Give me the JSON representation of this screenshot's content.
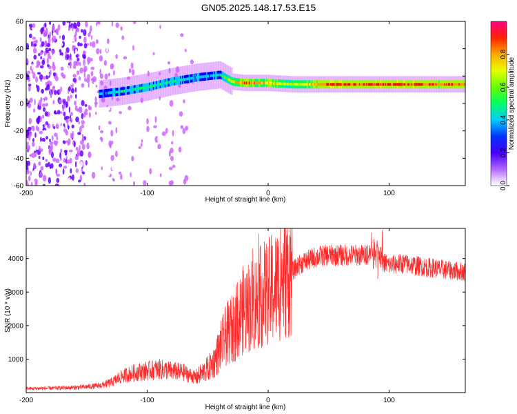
{
  "figure": {
    "title": "GN05.2025.148.17.53.E15"
  },
  "chart_data": [
    {
      "type": "heatmap",
      "name": "spectrogram",
      "xlabel": "Height of straight line (km)",
      "ylabel": "Frequency (Hz)",
      "xlim": [
        -200,
        163
      ],
      "ylim": [
        -60,
        60
      ],
      "xticks": [
        -200,
        -100,
        0,
        100
      ],
      "yticks": [
        -60,
        -40,
        -20,
        0,
        20,
        40,
        60
      ],
      "ytick_labels": [
        "-60",
        "-40",
        "-20",
        "0",
        "20",
        "40",
        "60"
      ],
      "grid": false,
      "colorbar": {
        "label": "Normalized spectral amplitude",
        "range": [
          0,
          1
        ],
        "ticks": [
          0.0,
          0.2,
          0.4,
          0.6,
          0.8
        ],
        "tick_labels": [
          "0.0",
          "0.2",
          "0.4",
          "0.6",
          "0.8"
        ],
        "colormap": [
          "#ffffff",
          "#cc66ff",
          "#6600ff",
          "#0000ff",
          "#00ccff",
          "#00ff66",
          "#99ff00",
          "#ffff00",
          "#ff9900",
          "#ff0000",
          "#ff0099"
        ]
      },
      "ridge": {
        "x": [
          -140,
          -120,
          -100,
          -80,
          -60,
          -40,
          -30,
          -20,
          0,
          20,
          50,
          80,
          100,
          120,
          140,
          163
        ],
        "freq": [
          7,
          9,
          12,
          16,
          19,
          21,
          16,
          15,
          15,
          14,
          14,
          14,
          14,
          14,
          14,
          14
        ],
        "peak_amplitude": [
          0.45,
          0.5,
          0.55,
          0.55,
          0.45,
          0.5,
          0.75,
          0.9,
          0.8,
          0.7,
          0.95,
          0.9,
          0.95,
          0.95,
          0.9,
          0.9
        ]
      },
      "noise_region_x": [
        -200,
        -60
      ]
    },
    {
      "type": "line",
      "name": "snr",
      "xlabel": "Height of straight line (km)",
      "ylabel": "SNR (10 * v/v)",
      "xlim": [
        -200,
        163
      ],
      "ylim": [
        0,
        4900
      ],
      "xticks": [
        -200,
        -100,
        0,
        100
      ],
      "yticks": [
        1000,
        2000,
        3000,
        4000
      ],
      "grid": false,
      "color": "#ff2a2a",
      "series": [
        {
          "x": [
            -200,
            -180,
            -160,
            -140,
            -130,
            -120,
            -110,
            -100,
            -90,
            -80,
            -70,
            -60,
            -50,
            -45,
            -40,
            -35,
            -30,
            -25,
            -20,
            -15,
            -10,
            -5,
            0,
            5,
            10,
            15,
            20,
            25,
            30,
            40,
            50,
            60,
            70,
            80,
            85,
            90,
            95,
            100,
            110,
            120,
            130,
            140,
            150,
            163
          ],
          "values": [
            120,
            130,
            150,
            200,
            300,
            500,
            600,
            650,
            700,
            650,
            600,
            450,
            700,
            900,
            1300,
            1700,
            1900,
            2200,
            2500,
            2600,
            2700,
            2900,
            3000,
            3100,
            3300,
            3500,
            3600,
            3800,
            3900,
            4050,
            4100,
            4100,
            4100,
            4100,
            4200,
            4300,
            3900,
            3800,
            3850,
            3800,
            3750,
            3700,
            3650,
            3600
          ]
        }
      ]
    }
  ]
}
